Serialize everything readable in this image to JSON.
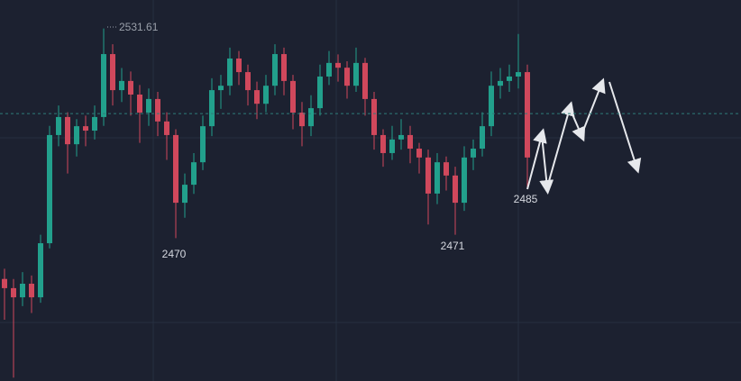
{
  "chart_data": {
    "type": "candlestick",
    "open": [
      2458.0,
      2455.3,
      2452.6,
      2456.6,
      2452.6,
      2468.5,
      2500.3,
      2505.6,
      2497.6,
      2502.9,
      2501.6,
      2505.6,
      2524.1,
      2513.5,
      2516.2,
      2512.2,
      2506.9,
      2510.9,
      2504.3,
      2500.3,
      2480.4,
      2485.7,
      2492.3,
      2502.9,
      2513.5,
      2514.8,
      2522.8,
      2518.8,
      2513.5,
      2509.5,
      2514.8,
      2524.1,
      2516.2,
      2506.9,
      2502.9,
      2508.2,
      2517.5,
      2521.5,
      2520.1,
      2514.8,
      2521.5,
      2510.9,
      2500.3,
      2495.0,
      2499.0,
      2500.3,
      2496.3,
      2493.7,
      2483.1,
      2492.3,
      2488.4,
      2480.4,
      2493.7,
      2496.3,
      2502.9,
      2514.8,
      2516.2,
      2517.5,
      2518.8
    ],
    "high": [
      2461,
      2458,
      2460,
      2459,
      2471,
      2503,
      2509,
      2507,
      2505,
      2506,
      2509,
      2531.61,
      2527,
      2520,
      2519,
      2515,
      2514,
      2513,
      2507,
      2502,
      2489,
      2495,
      2506,
      2517,
      2518,
      2526,
      2525,
      2521,
      2516,
      2518,
      2527,
      2526,
      2518,
      2510,
      2512,
      2521,
      2525,
      2524,
      2522,
      2526,
      2523,
      2513,
      2502,
      2503,
      2505,
      2503,
      2498,
      2496,
      2495,
      2494,
      2491,
      2497,
      2499,
      2507,
      2519,
      2520,
      2521,
      2530,
      2521
    ],
    "low": [
      2446,
      2429,
      2450,
      2448,
      2451,
      2467,
      2497,
      2489,
      2494,
      2497,
      2499,
      2503,
      2509,
      2510,
      2506,
      2498,
      2503,
      2500,
      2493,
      2470,
      2476,
      2483,
      2490,
      2500,
      2508,
      2512,
      2515,
      2509,
      2505,
      2507,
      2512,
      2512,
      2502,
      2497,
      2500,
      2506,
      2515,
      2516,
      2511,
      2513,
      2506,
      2496,
      2491,
      2493,
      2496,
      2492,
      2489,
      2474,
      2480,
      2484,
      2471,
      2478,
      2490,
      2494,
      2500,
      2511,
      2513,
      2514,
      2485
    ],
    "close": [
      2455.3,
      2452.6,
      2456.6,
      2452.6,
      2468.5,
      2500.3,
      2505.6,
      2497.6,
      2502.9,
      2501.6,
      2505.6,
      2524.1,
      2513.5,
      2516.2,
      2512.2,
      2506.9,
      2510.9,
      2504.3,
      2500.3,
      2480.4,
      2485.7,
      2492.3,
      2502.9,
      2513.5,
      2514.8,
      2522.8,
      2518.8,
      2513.5,
      2509.5,
      2514.8,
      2524.1,
      2516.2,
      2506.9,
      2502.9,
      2508.2,
      2517.5,
      2521.5,
      2520.1,
      2514.8,
      2521.5,
      2510.9,
      2500.3,
      2495.0,
      2499.0,
      2500.3,
      2496.3,
      2493.7,
      2483.1,
      2492.3,
      2488.4,
      2480.4,
      2493.7,
      2496.3,
      2502.9,
      2514.8,
      2516.2,
      2517.5,
      2518.8,
      2493.7
    ],
    "up_color": "#22a08c",
    "down_color": "#d0485c",
    "price_line": 2506.6,
    "price_line_color": "#2e7d7a",
    "annotations": [
      2531.61,
      2470,
      2471,
      2485
    ],
    "ylim": [
      2428,
      2540
    ]
  }
}
